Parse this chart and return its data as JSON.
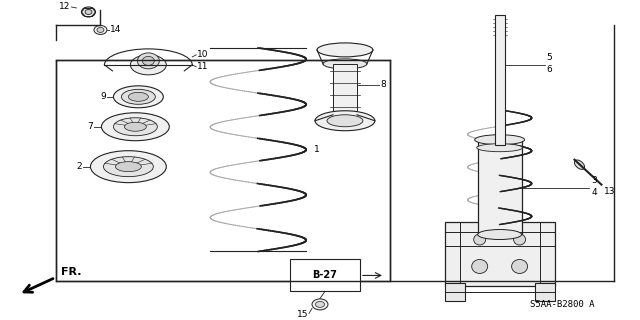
{
  "bg_color": "#ffffff",
  "line_color": "#222222",
  "part_code": "S5AA-B2800 A",
  "figsize": [
    6.4,
    3.2
  ],
  "dpi": 100
}
